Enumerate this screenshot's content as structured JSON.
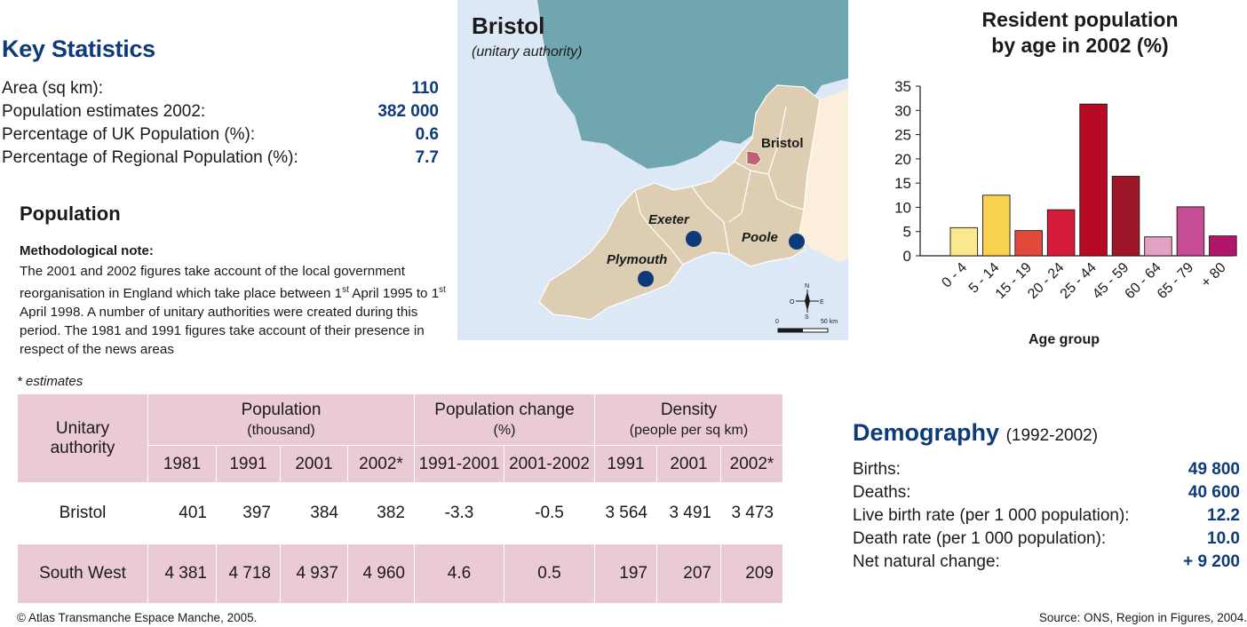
{
  "key_statistics": {
    "title": "Key Statistics",
    "rows": [
      {
        "label": "Area (sq km):",
        "value": "110"
      },
      {
        "label": "Population estimates 2002:",
        "value": "382 000"
      },
      {
        "label": "Percentage of UK Population (%):",
        "value": "0.6"
      },
      {
        "label": "Percentage of Regional Population (%):",
        "value": "7.7"
      }
    ]
  },
  "population": {
    "title": "Population",
    "method_title": "Methodological note:",
    "method_text_1": "The 2001 and 2002 figures take account of the local government reorganisation in England which take place between 1",
    "sup_1": "st",
    "method_text_2": " April 1995 to 1",
    "sup_2": "st",
    "method_text_3": " April 1998. A number of unitary authorities were created during this period. The 1981 and 1991 figures take account of their presence in respect of the news areas",
    "estimates_note": "* estimates"
  },
  "table": {
    "col_unitary": "Unitary authority",
    "group_population": "Population",
    "group_population_unit": "(thousand)",
    "group_change": "Population change",
    "group_change_unit": "(%)",
    "group_density": "Density",
    "group_density_unit": "(people per sq km)",
    "sub_headers": [
      "1981",
      "1991",
      "2001",
      "2002*",
      "1991-2001",
      "2001-2002",
      "1991",
      "2001",
      "2002*"
    ],
    "rows": [
      {
        "name": "Bristol",
        "values": [
          "401",
          "397",
          "384",
          "382",
          "-3.3",
          "-0.5",
          "3 564",
          "3 491",
          "3 473"
        ]
      },
      {
        "name": "South West",
        "values": [
          "4 381",
          "4 718",
          "4 937",
          "4 960",
          "4.6",
          "0.5",
          "197",
          "207",
          "209"
        ]
      }
    ]
  },
  "map": {
    "title": "Bristol",
    "subtitle": "(unitary authority)",
    "labels": [
      "Bristol",
      "Exeter",
      "Poole",
      "Plymouth"
    ],
    "compass": {
      "n": "N",
      "s": "S",
      "e": "E",
      "w": "O"
    },
    "scale": {
      "zero": "0",
      "max": "50 km"
    },
    "colors": {
      "sea": "#dce8f5",
      "wales": "#6fa6b0",
      "region": "#ddcdb3",
      "neighbour": "#fbeedb",
      "bristol": "#c06070",
      "city": "#0d3a78"
    }
  },
  "chart_data": {
    "type": "bar",
    "title": "Resident population by age in 2002 (%)",
    "xlabel": "Age group",
    "ylabel": "",
    "categories": [
      "0 - 4",
      "5 - 14",
      "15 - 19",
      "20 - 24",
      "25 - 44",
      "45 - 59",
      "60 - 64",
      "65 - 79",
      "+ 80"
    ],
    "values": [
      5.8,
      12.5,
      5.2,
      9.5,
      31.3,
      16.4,
      3.9,
      10.1,
      4.1
    ],
    "colors": [
      "#fbe78e",
      "#f8d14e",
      "#e14a3a",
      "#d41b3a",
      "#b80a24",
      "#9e1728",
      "#e3a2c3",
      "#c64c94",
      "#b2166b"
    ],
    "ylim": [
      0,
      35
    ],
    "yticks": [
      0,
      5,
      10,
      15,
      20,
      25,
      30,
      35
    ],
    "grid": false
  },
  "demography": {
    "title": "Demography",
    "period": "(1992-2002)",
    "rows": [
      {
        "label": "Births:",
        "value": "49 800"
      },
      {
        "label": "Deaths:",
        "value": "40 600"
      },
      {
        "label": "Live birth rate (per 1 000 population):",
        "value": "12.2"
      },
      {
        "label": "Death rate (per 1 000 population):",
        "value": "10.0"
      },
      {
        "label": "Net natural change:",
        "value": "+ 9 200"
      }
    ]
  },
  "footer": {
    "copyright": "© Atlas Transmanche Espace Manche, 2005.",
    "source": "Source: ONS, Region in Figures, 2004."
  }
}
